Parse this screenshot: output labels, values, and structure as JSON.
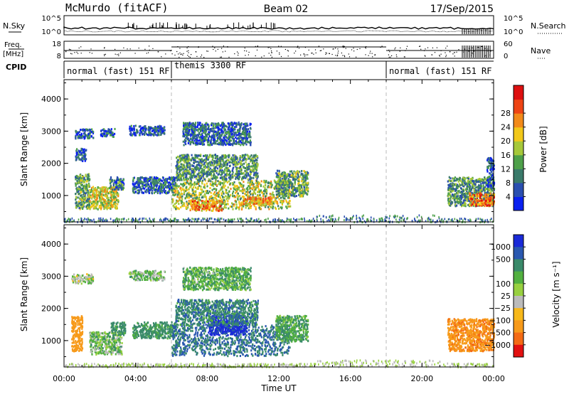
{
  "header": {
    "station": "McMurdo (fitACF)",
    "beam": "Beam 02",
    "date": "17/Sep/2015"
  },
  "noise_panel": {
    "left_label": "N.Sky",
    "right_label": "N.Search",
    "left_ticks": [
      "10^5",
      "10^0"
    ],
    "right_ticks": [
      "10^5",
      "10^0"
    ]
  },
  "freq_panel": {
    "left_label_1": "Freq.",
    "left_label_2": "[MHz]",
    "right_label": "Nave",
    "left_ticks": [
      "18",
      "8"
    ],
    "right_ticks": [
      "60",
      "0"
    ]
  },
  "cpid": {
    "label": "CPID",
    "segments": [
      {
        "name": "normal (fast) 151 RF",
        "start": 0,
        "end": 6
      },
      {
        "name": "themis 3300 RF",
        "start": 6,
        "end": 18
      },
      {
        "name": "normal (fast) 151 RF",
        "start": 18,
        "end": 24
      }
    ]
  },
  "time_axis": {
    "label": "Time UT",
    "ticks": [
      "00:00",
      "04:00",
      "08:00",
      "12:00",
      "16:00",
      "20:00",
      "00:00"
    ],
    "tick_hours": [
      0,
      4,
      8,
      12,
      16,
      20,
      24
    ],
    "range_hours": [
      0,
      24
    ],
    "dashed_hours": [
      6,
      18
    ]
  },
  "chart_data": [
    {
      "type": "heatmap",
      "quantity": "power",
      "ylabel": "Slant Range [km]",
      "ylim": [
        180,
        4600
      ],
      "yticks": [
        "1000",
        "2000",
        "3000",
        "4000"
      ],
      "ytick_values": [
        1000,
        2000,
        3000,
        4000
      ],
      "colorbar": {
        "label": "Power [dB]",
        "ticks": [
          "4",
          "8",
          "12",
          "16",
          "20",
          "24",
          "28"
        ],
        "colors": [
          "#0a20f0",
          "#2a4fb0",
          "#3a7a6a",
          "#4ea04a",
          "#a6c83a",
          "#f2c81a",
          "#f28a1a",
          "#ee4414",
          "#dd1010"
        ]
      },
      "echo_regions": [
        {
          "t": [
            0.6,
            1.4
          ],
          "r": [
            600,
            1700
          ],
          "value": 14
        },
        {
          "t": [
            0.6,
            1.6
          ],
          "r": [
            2800,
            3100
          ],
          "value": 6
        },
        {
          "t": [
            0.6,
            1.2
          ],
          "r": [
            2100,
            2500
          ],
          "value": 6
        },
        {
          "t": [
            1.4,
            3.0
          ],
          "r": [
            600,
            1300
          ],
          "value": 20
        },
        {
          "t": [
            2.5,
            3.3
          ],
          "r": [
            1200,
            1600
          ],
          "value": 10
        },
        {
          "t": [
            2.0,
            2.8
          ],
          "r": [
            2850,
            3100
          ],
          "value": 6
        },
        {
          "t": [
            3.6,
            5.6
          ],
          "r": [
            2900,
            3200
          ],
          "value": 6
        },
        {
          "t": [
            3.8,
            6.2
          ],
          "r": [
            1100,
            1600
          ],
          "value": 8
        },
        {
          "t": [
            6.0,
            12.6
          ],
          "r": [
            600,
            1500
          ],
          "value": 18
        },
        {
          "t": [
            7.0,
            8.8
          ],
          "r": [
            550,
            900
          ],
          "value": 26
        },
        {
          "t": [
            10.0,
            11.6
          ],
          "r": [
            750,
            1000
          ],
          "value": 24
        },
        {
          "t": [
            6.2,
            10.8
          ],
          "r": [
            1500,
            2300
          ],
          "value": 12
        },
        {
          "t": [
            6.6,
            10.4
          ],
          "r": [
            2600,
            3300
          ],
          "value": 8
        },
        {
          "t": [
            11.8,
            13.6
          ],
          "r": [
            1000,
            1800
          ],
          "value": 14
        },
        {
          "t": [
            21.4,
            24.0
          ],
          "r": [
            700,
            1600
          ],
          "value": 12
        },
        {
          "t": [
            22.6,
            24.0
          ],
          "r": [
            700,
            1100
          ],
          "value": 28
        },
        {
          "t": [
            23.6,
            24.0
          ],
          "r": [
            1300,
            2200
          ],
          "value": 6
        }
      ],
      "ground_scatter": {
        "t": [
          0,
          24
        ],
        "r": [
          200,
          320
        ]
      }
    },
    {
      "type": "heatmap",
      "quantity": "velocity",
      "ylabel": "Slant Range [km]",
      "ylim": [
        180,
        4600
      ],
      "yticks": [
        "1000",
        "2000",
        "3000",
        "4000"
      ],
      "ytick_values": [
        1000,
        2000,
        3000,
        4000
      ],
      "colorbar": {
        "label": "Velocity [m s⁻¹]",
        "ticks": [
          "1000",
          "500",
          "100",
          "25",
          "−25",
          "−100",
          "−500",
          "−1000"
        ],
        "colors": [
          "#1a2ad8",
          "#2a58b0",
          "#3a8a6a",
          "#52b040",
          "#98d040",
          "#bbbbbb",
          "#f7b81a",
          "#f79a1a",
          "#f46a14",
          "#e21010"
        ]
      },
      "echo_regions": [
        {
          "t": [
            0.4,
            1.0
          ],
          "r": [
            700,
            1800
          ],
          "value": -300
        },
        {
          "t": [
            0.4,
            1.6
          ],
          "r": [
            2800,
            3100
          ],
          "value": 20
        },
        {
          "t": [
            1.4,
            3.2
          ],
          "r": [
            600,
            1300
          ],
          "value": 60
        },
        {
          "t": [
            2.6,
            3.4
          ],
          "r": [
            1200,
            1600
          ],
          "value": 150
        },
        {
          "t": [
            3.6,
            5.6
          ],
          "r": [
            2900,
            3200
          ],
          "value": 60
        },
        {
          "t": [
            3.8,
            6.2
          ],
          "r": [
            1100,
            1600
          ],
          "value": 150
        },
        {
          "t": [
            6.0,
            12.6
          ],
          "r": [
            550,
            1500
          ],
          "value": 250
        },
        {
          "t": [
            8.0,
            10.2
          ],
          "r": [
            1200,
            1800
          ],
          "value": 800
        },
        {
          "t": [
            6.2,
            10.8
          ],
          "r": [
            1500,
            2300
          ],
          "value": 200
        },
        {
          "t": [
            6.6,
            10.4
          ],
          "r": [
            2600,
            3300
          ],
          "value": 80
        },
        {
          "t": [
            11.8,
            13.6
          ],
          "r": [
            1000,
            1800
          ],
          "value": 100
        },
        {
          "t": [
            21.4,
            24.0
          ],
          "r": [
            700,
            1700
          ],
          "value": -400
        }
      ],
      "ground_scatter": {
        "t": [
          0,
          24
        ],
        "r": [
          200,
          320
        ]
      }
    }
  ]
}
